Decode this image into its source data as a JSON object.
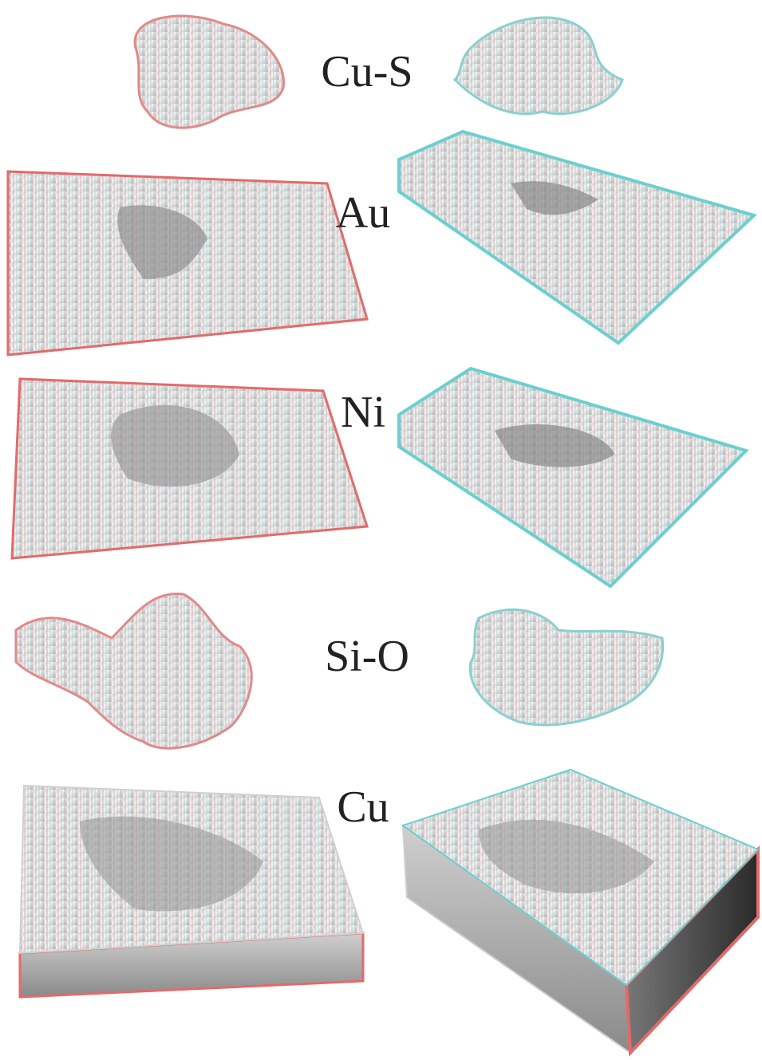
{
  "figure": {
    "labels": [
      "Cu-S",
      "Au",
      "Ni",
      "Si-O",
      "Cu"
    ]
  }
}
